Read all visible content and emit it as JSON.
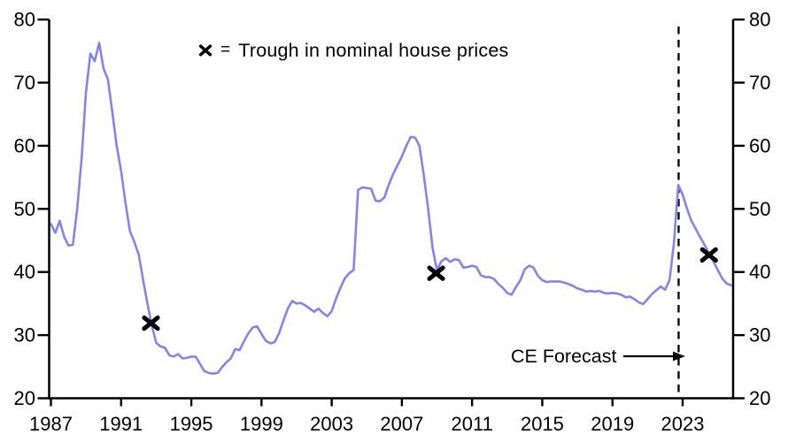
{
  "chart_data": {
    "type": "line",
    "title": "",
    "legend": {
      "symbol": "x",
      "separator": "=",
      "label": "Trough in nominal house prices",
      "position": "top-center"
    },
    "forecast": {
      "label": "CE Forecast",
      "line_x": 2022.77,
      "line_style": "dashed"
    },
    "axes": {
      "ylim": [
        20,
        80
      ],
      "yticks": [
        20,
        30,
        40,
        50,
        60,
        70,
        80
      ],
      "xticks": [
        1987,
        1991,
        1995,
        1999,
        2003,
        2007,
        2011,
        2015,
        2019,
        2023
      ],
      "x_range": [
        1987,
        2025.75
      ],
      "y_axis_sides": [
        "left",
        "right"
      ],
      "grid": false
    },
    "colors": {
      "line": "#8484ec",
      "marker": "#000000",
      "axis": "#000000"
    },
    "marker_points": [
      {
        "x": 1992.7,
        "y": 31.9
      },
      {
        "x": 2008.95,
        "y": 39.8
      },
      {
        "x": 2024.5,
        "y": 42.7
      }
    ],
    "points": [
      [
        1987,
        47.6
      ],
      [
        1987.25,
        46.2
      ],
      [
        1987.5,
        48.1
      ],
      [
        1987.75,
        45.6
      ],
      [
        1988,
        44.2
      ],
      [
        1988.25,
        44.3
      ],
      [
        1988.5,
        50
      ],
      [
        1988.75,
        58
      ],
      [
        1989,
        68.5
      ],
      [
        1989.25,
        74.6
      ],
      [
        1989.5,
        73.4
      ],
      [
        1989.75,
        76.3
      ],
      [
        1990,
        72.2
      ],
      [
        1990.25,
        70.5
      ],
      [
        1990.5,
        65.3
      ],
      [
        1990.75,
        60
      ],
      [
        1991,
        56
      ],
      [
        1991.25,
        51
      ],
      [
        1991.5,
        46.5
      ],
      [
        1991.75,
        44.8
      ],
      [
        1992,
        42.8
      ],
      [
        1992.25,
        38.8
      ],
      [
        1992.5,
        35
      ],
      [
        1992.75,
        31.5
      ],
      [
        1993,
        28.8
      ],
      [
        1993.25,
        28.2
      ],
      [
        1993.5,
        28
      ],
      [
        1993.75,
        26.8
      ],
      [
        1994,
        26.6
      ],
      [
        1994.25,
        27
      ],
      [
        1994.5,
        26.3
      ],
      [
        1994.75,
        26.4
      ],
      [
        1995,
        26.6
      ],
      [
        1995.25,
        26.6
      ],
      [
        1995.5,
        25.4
      ],
      [
        1995.75,
        24.3
      ],
      [
        1996,
        24
      ],
      [
        1996.25,
        23.9
      ],
      [
        1996.5,
        24
      ],
      [
        1996.75,
        24.9
      ],
      [
        1997,
        25.7
      ],
      [
        1997.25,
        26.3
      ],
      [
        1997.5,
        27.8
      ],
      [
        1997.75,
        27.6
      ],
      [
        1998,
        29
      ],
      [
        1998.25,
        30.3
      ],
      [
        1998.5,
        31.2
      ],
      [
        1998.75,
        31.4
      ],
      [
        1999,
        30.2
      ],
      [
        1999.25,
        29.1
      ],
      [
        1999.5,
        28.7
      ],
      [
        1999.75,
        28.9
      ],
      [
        2000,
        30.3
      ],
      [
        2000.25,
        32.3
      ],
      [
        2000.5,
        34.2
      ],
      [
        2000.75,
        35.4
      ],
      [
        2001,
        35
      ],
      [
        2001.25,
        35.1
      ],
      [
        2001.5,
        34.7
      ],
      [
        2001.75,
        34.2
      ],
      [
        2002,
        33.7
      ],
      [
        2002.25,
        34.2
      ],
      [
        2002.5,
        33.5
      ],
      [
        2002.75,
        33
      ],
      [
        2003,
        33.8
      ],
      [
        2003.25,
        35.8
      ],
      [
        2003.5,
        37.5
      ],
      [
        2003.75,
        39
      ],
      [
        2004,
        39.8
      ],
      [
        2004.25,
        40.3
      ],
      [
        2004.5,
        53
      ],
      [
        2004.75,
        53.4
      ],
      [
        2005,
        53.3
      ],
      [
        2005.25,
        53.2
      ],
      [
        2005.5,
        51.3
      ],
      [
        2005.75,
        51.2
      ],
      [
        2006,
        51.8
      ],
      [
        2006.25,
        53.8
      ],
      [
        2006.5,
        55.5
      ],
      [
        2006.75,
        56.9
      ],
      [
        2007,
        58.3
      ],
      [
        2007.25,
        60
      ],
      [
        2007.5,
        61.4
      ],
      [
        2007.75,
        61.3
      ],
      [
        2008,
        60
      ],
      [
        2008.25,
        55.3
      ],
      [
        2008.5,
        50
      ],
      [
        2008.75,
        43.8
      ],
      [
        2009,
        40.3
      ],
      [
        2009.25,
        41.7
      ],
      [
        2009.5,
        42.2
      ],
      [
        2009.75,
        41.6
      ],
      [
        2010,
        42
      ],
      [
        2010.25,
        41.9
      ],
      [
        2010.5,
        40.7
      ],
      [
        2010.75,
        40.8
      ],
      [
        2011,
        41
      ],
      [
        2011.25,
        40.8
      ],
      [
        2011.5,
        39.5
      ],
      [
        2011.75,
        39.2
      ],
      [
        2012,
        39.2
      ],
      [
        2012.25,
        38.9
      ],
      [
        2012.5,
        38.1
      ],
      [
        2012.75,
        37.5
      ],
      [
        2013,
        36.7
      ],
      [
        2013.25,
        36.4
      ],
      [
        2013.5,
        37.6
      ],
      [
        2013.75,
        38.7
      ],
      [
        2014,
        40.4
      ],
      [
        2014.25,
        41
      ],
      [
        2014.5,
        40.7
      ],
      [
        2014.75,
        39.4
      ],
      [
        2015,
        38.7
      ],
      [
        2015.25,
        38.4
      ],
      [
        2015.5,
        38.5
      ],
      [
        2015.75,
        38.5
      ],
      [
        2016,
        38.5
      ],
      [
        2016.25,
        38.3
      ],
      [
        2016.5,
        38.1
      ],
      [
        2016.75,
        37.8
      ],
      [
        2017,
        37.4
      ],
      [
        2017.25,
        37.2
      ],
      [
        2017.5,
        36.9
      ],
      [
        2017.75,
        37
      ],
      [
        2018,
        36.9
      ],
      [
        2018.25,
        37
      ],
      [
        2018.5,
        36.7
      ],
      [
        2018.75,
        36.6
      ],
      [
        2019,
        36.7
      ],
      [
        2019.25,
        36.6
      ],
      [
        2019.5,
        36.4
      ],
      [
        2019.75,
        36
      ],
      [
        2020,
        36.1
      ],
      [
        2020.25,
        35.7
      ],
      [
        2020.5,
        35.2
      ],
      [
        2020.75,
        34.9
      ],
      [
        2021,
        35.7
      ],
      [
        2021.25,
        36.5
      ],
      [
        2021.5,
        37.1
      ],
      [
        2021.75,
        37.7
      ],
      [
        2022,
        37.2
      ],
      [
        2022.25,
        38.7
      ],
      [
        2022.5,
        44.5
      ],
      [
        2022.75,
        53.8
      ],
      [
        2023,
        52.3
      ],
      [
        2023.25,
        50
      ],
      [
        2023.5,
        48.1
      ],
      [
        2023.75,
        46.8
      ],
      [
        2024,
        45.5
      ],
      [
        2024.25,
        44.3
      ],
      [
        2024.5,
        42.9
      ],
      [
        2024.75,
        41.7
      ],
      [
        2025,
        40.3
      ],
      [
        2025.25,
        39
      ],
      [
        2025.5,
        38.2
      ],
      [
        2025.75,
        37.9
      ]
    ]
  }
}
